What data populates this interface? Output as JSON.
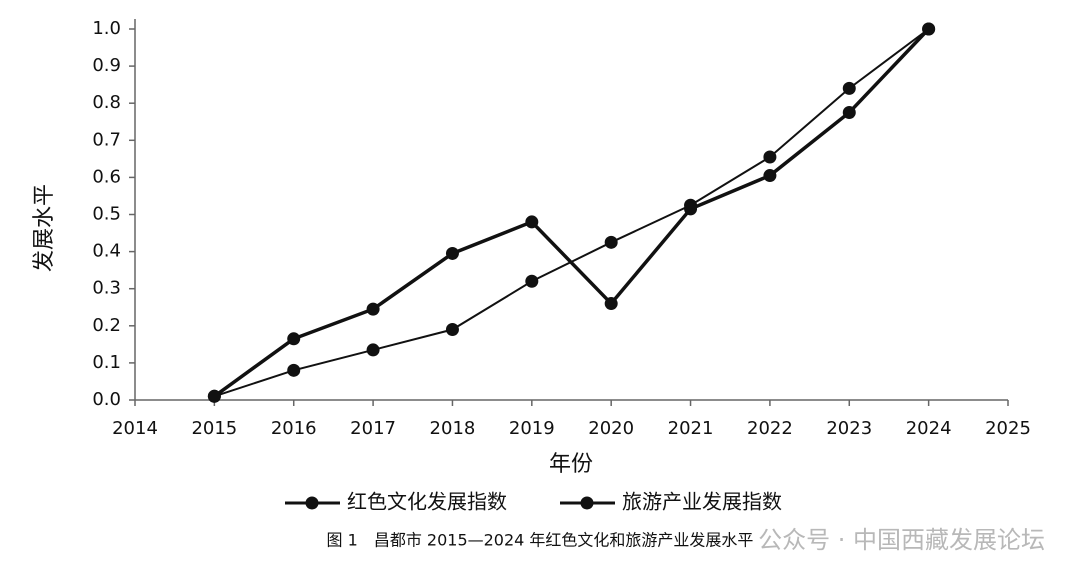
{
  "chart_data": {
    "type": "line",
    "y_label": "发展水平",
    "x_label": "年份",
    "caption": "图 1　昌都市 2015—2024 年红色文化和旅游产业发展水平",
    "watermark": "公众号 · 中国西藏发展论坛",
    "x": [
      2015,
      2016,
      2017,
      2018,
      2019,
      2020,
      2021,
      2022,
      2023,
      2024
    ],
    "series": [
      {
        "name": "红色文化发展指数",
        "color": "#111111",
        "values": [
          0.01,
          0.08,
          0.135,
          0.19,
          0.32,
          0.425,
          0.525,
          0.655,
          0.84,
          1.0
        ]
      },
      {
        "name": "旅游产业发展指数",
        "color": "#111111",
        "values": [
          0.01,
          0.165,
          0.245,
          0.395,
          0.48,
          0.26,
          0.515,
          0.605,
          0.775,
          1.0
        ]
      }
    ],
    "xlim": [
      2014,
      2025
    ],
    "xticks": [
      2014,
      2015,
      2016,
      2017,
      2018,
      2019,
      2020,
      2021,
      2022,
      2023,
      2024,
      2025
    ],
    "ylim": [
      0,
      1
    ],
    "yticks": [
      {
        "value": 0,
        "label": "0.0"
      },
      0.1,
      0.2,
      0.3,
      0.4,
      0.5,
      0.6,
      0.7,
      0.8,
      0.9,
      {
        "value": 1,
        "label": "1.0"
      }
    ],
    "legend": "bottom"
  }
}
